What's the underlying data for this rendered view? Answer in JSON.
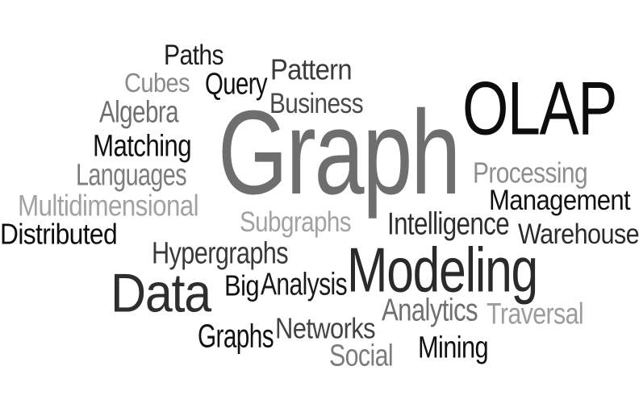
{
  "cloud": {
    "words": {
      "paths": {
        "text": "Paths",
        "color": "#1e1e1e"
      },
      "cubes": {
        "text": "Cubes",
        "color": "#8a8a8a"
      },
      "query": {
        "text": "Query",
        "color": "#111111"
      },
      "pattern": {
        "text": "Pattern",
        "color": "#3b3b3b"
      },
      "algebra": {
        "text": "Algebra",
        "color": "#6f6f6f"
      },
      "business": {
        "text": "Business",
        "color": "#4a4a4a"
      },
      "olap": {
        "text": "OLAP",
        "color": "#0d0d0d"
      },
      "matching": {
        "text": "Matching",
        "color": "#111111"
      },
      "graph": {
        "text": "Graph",
        "color": "#6e6e6e"
      },
      "languages": {
        "text": "Languages",
        "color": "#7c7c7c"
      },
      "processing": {
        "text": "Processing",
        "color": "#8e8e8e"
      },
      "multidimensional": {
        "text": "Multidimensional",
        "color": "#a2a2a2"
      },
      "management": {
        "text": "Management",
        "color": "#111111"
      },
      "distributed": {
        "text": "Distributed",
        "color": "#0d0d0d"
      },
      "subgraphs": {
        "text": "Subgraphs",
        "color": "#a2a2a2"
      },
      "intelligence": {
        "text": "Intelligence",
        "color": "#2e2e2e"
      },
      "warehouse": {
        "text": "Warehouse",
        "color": "#2b2b2b"
      },
      "hypergraphs": {
        "text": "Hypergraphs",
        "color": "#3a3a3a"
      },
      "modeling": {
        "text": "Modeling",
        "color": "#2a2a2a"
      },
      "data": {
        "text": "Data",
        "color": "#2e2e2e"
      },
      "big": {
        "text": "Big",
        "color": "#111111"
      },
      "analysis": {
        "text": "Analysis",
        "color": "#1a1a1a"
      },
      "analytics": {
        "text": "Analytics",
        "color": "#6f6f6f"
      },
      "traversal": {
        "text": "Traversal",
        "color": "#9c9c9c"
      },
      "graphs": {
        "text": "Graphs",
        "color": "#111111"
      },
      "networks": {
        "text": "Networks",
        "color": "#444444"
      },
      "mining": {
        "text": "Mining",
        "color": "#111111"
      },
      "social": {
        "text": "Social",
        "color": "#7c7c7c"
      }
    }
  }
}
